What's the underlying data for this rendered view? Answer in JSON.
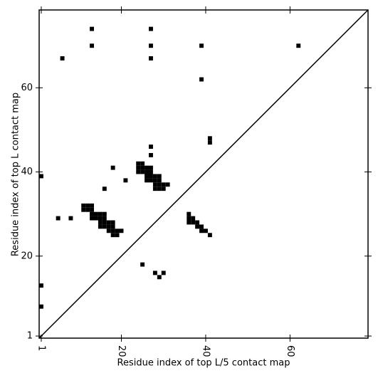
{
  "chart_data": {
    "type": "scatter",
    "xlabel": "Residue index of top L/5 contact map",
    "ylabel": "Residue index of top L contact map",
    "xlim": [
      0.5,
      78.5
    ],
    "ylim": [
      0.5,
      78.5
    ],
    "xticks": [
      1,
      20,
      40,
      60
    ],
    "yticks": [
      1,
      20,
      40,
      60
    ],
    "color": "#000000",
    "x": [
      13,
      27,
      13,
      27,
      39,
      62,
      6,
      27,
      39,
      41,
      41,
      27,
      27,
      18,
      1,
      21,
      16,
      24,
      25,
      24,
      25,
      26,
      27,
      24,
      25,
      26,
      27,
      26,
      27,
      28,
      29,
      26,
      27,
      28,
      29,
      28,
      29,
      30,
      31,
      28,
      29,
      30,
      11,
      12,
      13,
      11,
      12,
      13,
      13,
      14,
      15,
      16,
      13,
      14,
      15,
      16,
      15,
      16,
      17,
      18,
      15,
      16,
      17,
      18,
      17,
      18,
      19,
      20,
      18,
      19,
      5,
      8,
      36,
      36,
      37,
      36,
      37,
      38,
      38,
      39,
      39,
      40,
      41,
      25,
      28,
      30,
      29,
      1,
      1
    ],
    "y": [
      74,
      74,
      70,
      70,
      70,
      70,
      67,
      67,
      62,
      48,
      47,
      46,
      44,
      41,
      39,
      38,
      36,
      42,
      42,
      41,
      41,
      41,
      41,
      40,
      40,
      40,
      40,
      39,
      39,
      39,
      39,
      38,
      38,
      38,
      38,
      37,
      37,
      37,
      37,
      36,
      36,
      36,
      32,
      32,
      32,
      31,
      31,
      31,
      30,
      30,
      30,
      30,
      29,
      29,
      29,
      29,
      28,
      28,
      28,
      28,
      27,
      27,
      27,
      27,
      26,
      26,
      26,
      26,
      25,
      25,
      29,
      29,
      30,
      29,
      29,
      28,
      28,
      28,
      27,
      27,
      26,
      26,
      25,
      18,
      16,
      16,
      15,
      13,
      8
    ]
  }
}
